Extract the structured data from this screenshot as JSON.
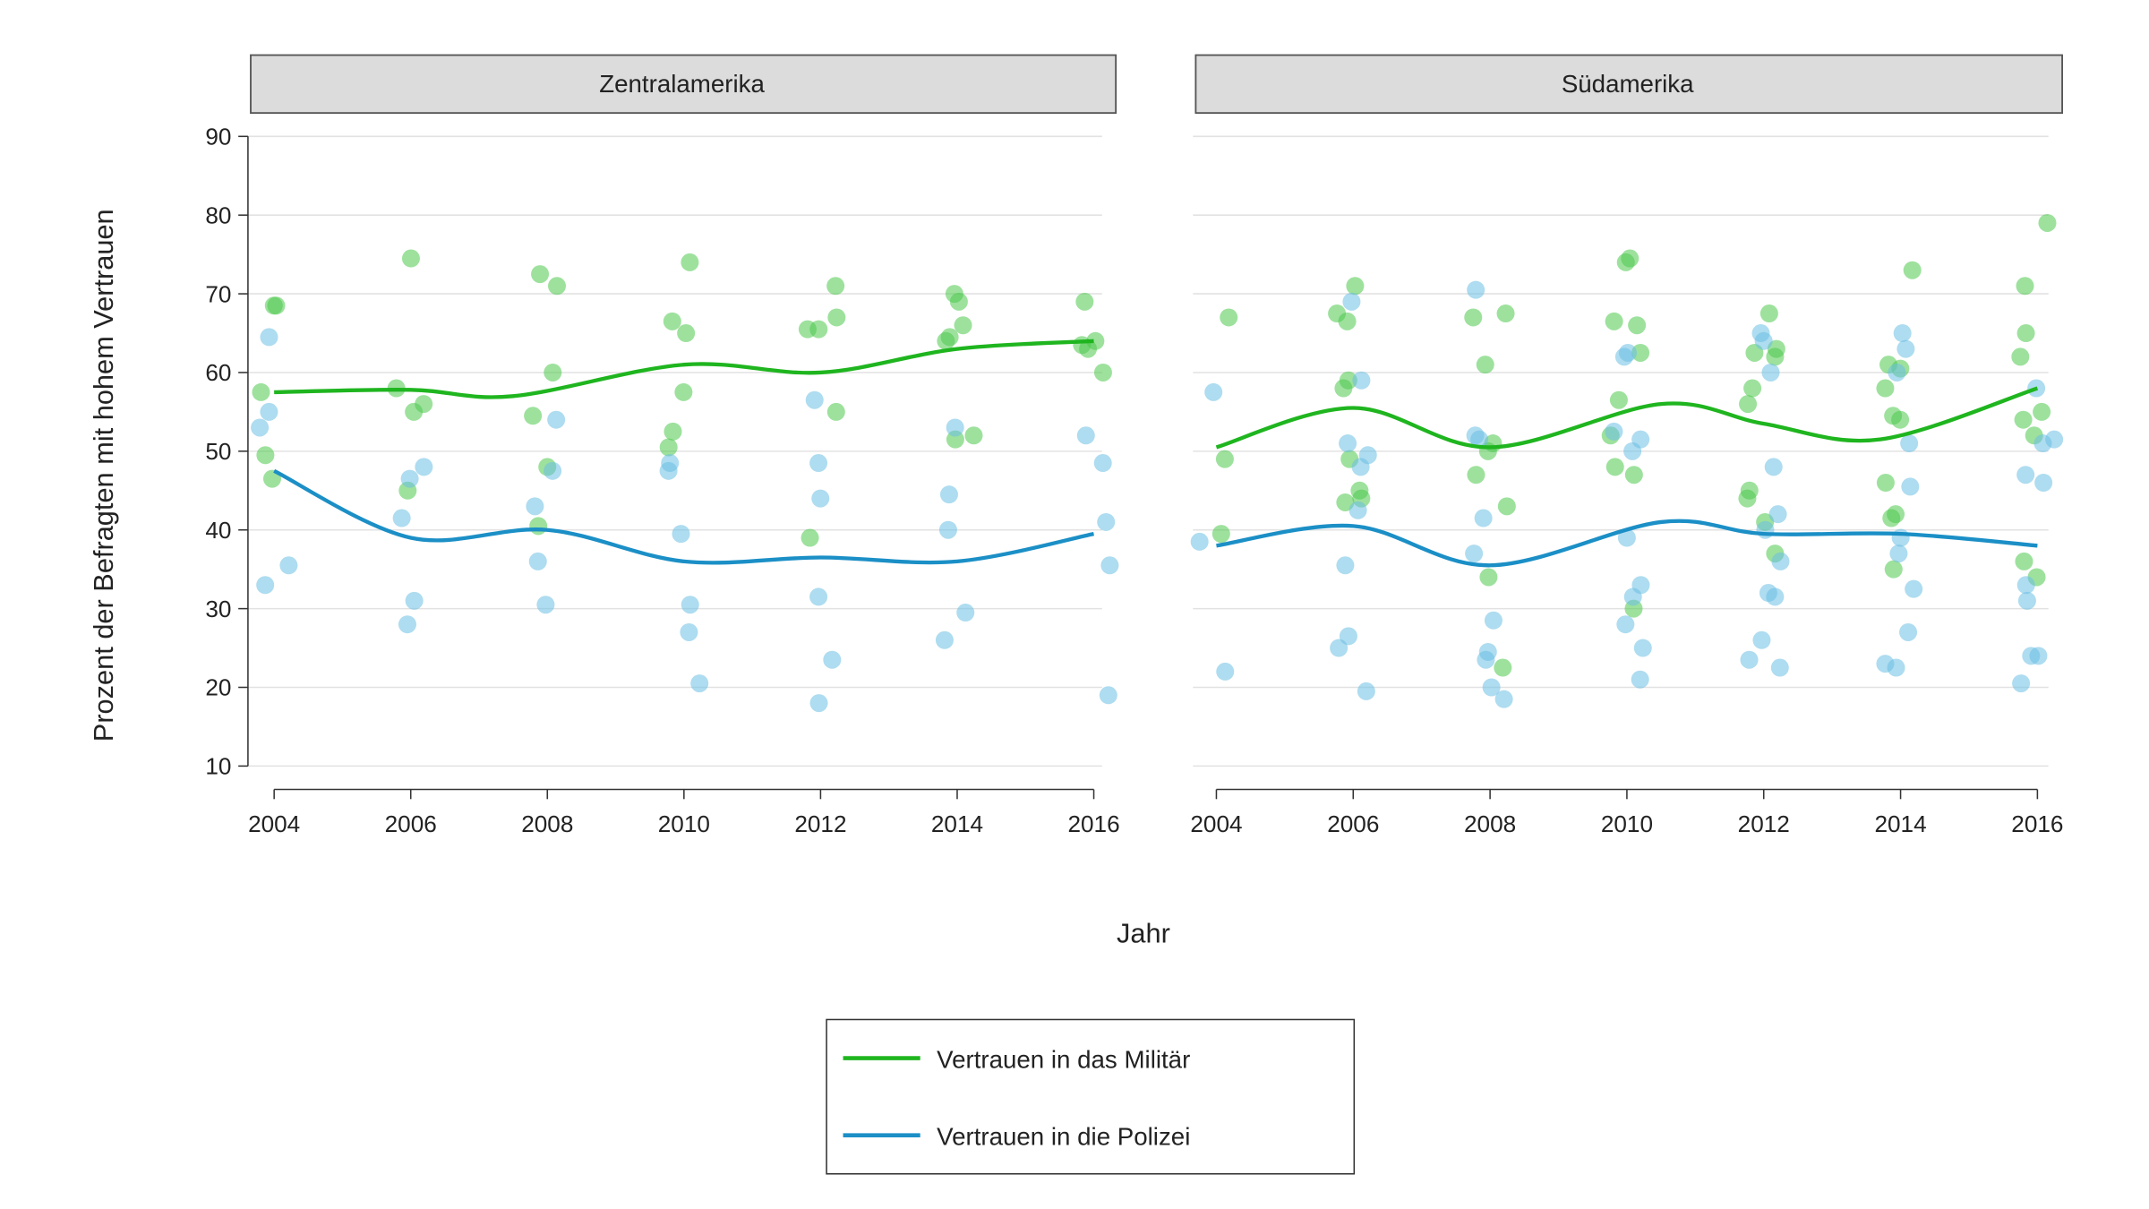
{
  "chart_data": {
    "type": "scatter",
    "xlabel": "Jahr",
    "ylabel": "Prozent der Befragten mit hohem Vertrauen",
    "ylim": [
      10,
      90
    ],
    "xlim": [
      2004,
      2016
    ],
    "yticks": [
      "10",
      "20",
      "30",
      "40",
      "50",
      "60",
      "70",
      "80",
      "90"
    ],
    "xticks": [
      "2004",
      "2006",
      "2008",
      "2010",
      "2012",
      "2014",
      "2016"
    ],
    "grid": true,
    "legend_position": "bottom",
    "colors": {
      "militaer": "#1fb51f",
      "polizei": "#1b8fc6",
      "militaer_points": "#4cc94c",
      "polizei_points": "#6cc0e4"
    },
    "legend": [
      {
        "key": "militaer",
        "label": "Vertrauen in das Militär"
      },
      {
        "key": "polizei",
        "label": "Vertrauen in die Polizei"
      }
    ],
    "panels": [
      {
        "title": "Zentralamerika",
        "series": [
          {
            "key": "militaer",
            "points": {
              "2004": [
                68.5,
                68.5,
                57.5,
                49.5,
                46.5
              ],
              "2006": [
                74.5,
                58,
                56,
                55,
                45
              ],
              "2008": [
                72.5,
                71,
                60,
                54.5,
                48,
                40.5
              ],
              "2010": [
                74,
                66.5,
                65,
                57.5,
                52.5,
                50.5
              ],
              "2012": [
                71,
                67,
                65.5,
                65.5,
                55,
                39
              ],
              "2014": [
                70,
                69,
                66,
                64.5,
                64,
                52,
                51.5
              ],
              "2016": [
                69,
                64,
                63,
                63.5,
                60
              ]
            },
            "smooth": {
              "x": [
                2004,
                2006,
                2007.5,
                2010,
                2012,
                2014,
                2016
              ],
              "y": [
                57.5,
                57.8,
                57,
                61,
                60,
                63,
                64
              ]
            }
          },
          {
            "key": "polizei",
            "points": {
              "2004": [
                64.5,
                55,
                53,
                35.5,
                33
              ],
              "2006": [
                48,
                46.5,
                41.5,
                31,
                28
              ],
              "2008": [
                54,
                47.5,
                43,
                36,
                30.5
              ],
              "2010": [
                48.5,
                47.5,
                39.5,
                30.5,
                27,
                20.5
              ],
              "2012": [
                56.5,
                48.5,
                44,
                31.5,
                23.5,
                18
              ],
              "2014": [
                53,
                44.5,
                40,
                29.5,
                26
              ],
              "2016": [
                52,
                48.5,
                41,
                35.5,
                19
              ]
            },
            "smooth": {
              "x": [
                2004,
                2006,
                2008,
                2010,
                2012,
                2014,
                2016
              ],
              "y": [
                47.5,
                39,
                40,
                36,
                36.5,
                36,
                39.5
              ]
            }
          }
        ]
      },
      {
        "title": "Südamerika",
        "series": [
          {
            "key": "militaer",
            "points": {
              "2004": [
                67,
                49,
                39.5
              ],
              "2006": [
                71,
                67.5,
                66.5,
                59,
                58,
                49,
                45,
                44,
                43.5
              ],
              "2008": [
                67.5,
                67,
                61,
                51,
                50,
                47,
                43,
                34,
                22.5
              ],
              "2010": [
                74.5,
                74,
                66.5,
                66,
                62.5,
                56.5,
                52,
                48,
                47,
                30
              ],
              "2012": [
                67.5,
                63,
                62.5,
                62,
                58,
                56,
                45,
                44,
                41,
                37
              ],
              "2014": [
                73,
                61,
                60.5,
                58,
                54.5,
                54,
                46,
                42,
                41.5,
                35
              ],
              "2016": [
                79,
                71,
                65,
                62,
                55,
                54,
                52,
                36,
                34
              ]
            },
            "smooth": {
              "x": [
                2004,
                2006,
                2008,
                2010.5,
                2012,
                2013.7,
                2016
              ],
              "y": [
                50.5,
                55.5,
                50.5,
                56,
                53.5,
                51.5,
                58
              ]
            }
          },
          {
            "key": "polizei",
            "points": {
              "2004": [
                57.5,
                38.5,
                22
              ],
              "2006": [
                69,
                59,
                51,
                49.5,
                48,
                42.5,
                35.5,
                26.5,
                25,
                19.5
              ],
              "2008": [
                70.5,
                52,
                51.5,
                41.5,
                37,
                28.5,
                24.5,
                23.5,
                20,
                18.5
              ],
              "2010": [
                62.5,
                62,
                52.5,
                51.5,
                50,
                39,
                33,
                31.5,
                28,
                25,
                21
              ],
              "2012": [
                65,
                64,
                60,
                48,
                42,
                40,
                36,
                32,
                31.5,
                26,
                23.5,
                22.5
              ],
              "2014": [
                65,
                63,
                60,
                51,
                45.5,
                39,
                37,
                32.5,
                27,
                23,
                22.5
              ],
              "2016": [
                58,
                51.5,
                51,
                47,
                46,
                33,
                31,
                24,
                24,
                20.5
              ]
            },
            "smooth": {
              "x": [
                2004,
                2006,
                2008,
                2010.5,
                2012,
                2014,
                2016
              ],
              "y": [
                38,
                40.5,
                35.5,
                41,
                39.5,
                39.5,
                38
              ]
            }
          }
        ]
      }
    ]
  }
}
